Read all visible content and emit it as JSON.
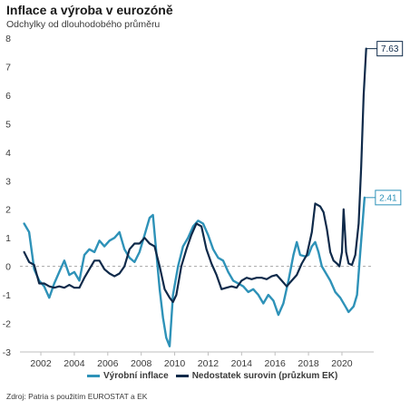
{
  "title": "Inflace a výroba v eurozóně",
  "subtitle": "Odchylky od dlouhodobého průměru",
  "source": "Zdroj: Patria s použitím EUROSTAT a EK",
  "chart_data": {
    "type": "line",
    "title": "Inflace a výroba v eurozóně",
    "subtitle": "Odchylky od dlouhodobého průměru",
    "xlabel": "",
    "ylabel": "",
    "xlim": [
      2000.75,
      2021.9
    ],
    "ylim": [
      -3,
      8
    ],
    "x_ticks": [
      2002,
      2004,
      2006,
      2008,
      2010,
      2012,
      2014,
      2016,
      2018,
      2020
    ],
    "y_ticks": [
      -3,
      -2,
      -1,
      0,
      1,
      2,
      3,
      4,
      5,
      6,
      7,
      8
    ],
    "grid": false,
    "zero_line": "dashed",
    "legend_position": "bottom",
    "series": [
      {
        "name": "Výrobní inflace",
        "color": "#2e92b8",
        "end_label": "2.41",
        "points": [
          [
            2001.0,
            1.5
          ],
          [
            2001.3,
            1.2
          ],
          [
            2001.6,
            -0.1
          ],
          [
            2001.9,
            -0.5
          ],
          [
            2002.2,
            -0.7
          ],
          [
            2002.5,
            -1.1
          ],
          [
            2002.8,
            -0.6
          ],
          [
            2003.1,
            -0.2
          ],
          [
            2003.4,
            0.2
          ],
          [
            2003.7,
            -0.3
          ],
          [
            2004.0,
            -0.2
          ],
          [
            2004.3,
            -0.5
          ],
          [
            2004.6,
            0.4
          ],
          [
            2004.9,
            0.6
          ],
          [
            2005.2,
            0.5
          ],
          [
            2005.5,
            0.9
          ],
          [
            2005.8,
            0.7
          ],
          [
            2006.1,
            0.9
          ],
          [
            2006.4,
            1.0
          ],
          [
            2006.7,
            1.2
          ],
          [
            2007.0,
            0.6
          ],
          [
            2007.3,
            0.3
          ],
          [
            2007.6,
            0.15
          ],
          [
            2007.9,
            0.5
          ],
          [
            2008.2,
            1.1
          ],
          [
            2008.5,
            1.7
          ],
          [
            2008.7,
            1.8
          ],
          [
            2008.9,
            0.5
          ],
          [
            2009.1,
            -0.8
          ],
          [
            2009.3,
            -1.8
          ],
          [
            2009.5,
            -2.5
          ],
          [
            2009.7,
            -2.8
          ],
          [
            2009.9,
            -1.0
          ],
          [
            2010.2,
            0.0
          ],
          [
            2010.5,
            0.7
          ],
          [
            2010.8,
            1.0
          ],
          [
            2011.1,
            1.4
          ],
          [
            2011.4,
            1.6
          ],
          [
            2011.7,
            1.5
          ],
          [
            2012.0,
            1.1
          ],
          [
            2012.3,
            0.6
          ],
          [
            2012.6,
            0.3
          ],
          [
            2012.9,
            0.2
          ],
          [
            2013.2,
            -0.2
          ],
          [
            2013.5,
            -0.5
          ],
          [
            2013.8,
            -0.6
          ],
          [
            2014.1,
            -0.7
          ],
          [
            2014.4,
            -0.9
          ],
          [
            2014.7,
            -0.8
          ],
          [
            2015.0,
            -1.0
          ],
          [
            2015.3,
            -1.3
          ],
          [
            2015.6,
            -1.0
          ],
          [
            2015.9,
            -1.2
          ],
          [
            2016.2,
            -1.7
          ],
          [
            2016.5,
            -1.3
          ],
          [
            2016.8,
            -0.5
          ],
          [
            2017.1,
            0.4
          ],
          [
            2017.3,
            0.85
          ],
          [
            2017.5,
            0.4
          ],
          [
            2017.8,
            0.35
          ],
          [
            2018.0,
            0.4
          ],
          [
            2018.2,
            0.7
          ],
          [
            2018.4,
            0.85
          ],
          [
            2018.6,
            0.5
          ],
          [
            2018.8,
            0.0
          ],
          [
            2019.0,
            -0.2
          ],
          [
            2019.3,
            -0.5
          ],
          [
            2019.6,
            -0.9
          ],
          [
            2019.9,
            -1.1
          ],
          [
            2020.2,
            -1.4
          ],
          [
            2020.4,
            -1.6
          ],
          [
            2020.7,
            -1.4
          ],
          [
            2020.9,
            -1.0
          ],
          [
            2021.1,
            0.5
          ],
          [
            2021.35,
            2.41
          ]
        ]
      },
      {
        "name": "Nedostatek surovin (průzkum EK)",
        "color": "#0f2a4a",
        "end_label": "7.63",
        "points": [
          [
            2001.0,
            0.5
          ],
          [
            2001.3,
            0.15
          ],
          [
            2001.6,
            0.05
          ],
          [
            2001.9,
            -0.6
          ],
          [
            2002.2,
            -0.6
          ],
          [
            2002.5,
            -0.7
          ],
          [
            2002.8,
            -0.75
          ],
          [
            2003.1,
            -0.7
          ],
          [
            2003.4,
            -0.75
          ],
          [
            2003.7,
            -0.65
          ],
          [
            2004.0,
            -0.75
          ],
          [
            2004.3,
            -0.75
          ],
          [
            2004.6,
            -0.4
          ],
          [
            2004.9,
            -0.1
          ],
          [
            2005.2,
            0.2
          ],
          [
            2005.5,
            0.2
          ],
          [
            2005.8,
            -0.1
          ],
          [
            2006.1,
            -0.25
          ],
          [
            2006.4,
            -0.35
          ],
          [
            2006.7,
            -0.25
          ],
          [
            2007.0,
            0.0
          ],
          [
            2007.3,
            0.6
          ],
          [
            2007.6,
            0.8
          ],
          [
            2007.9,
            0.8
          ],
          [
            2008.2,
            1.0
          ],
          [
            2008.5,
            0.8
          ],
          [
            2008.8,
            0.7
          ],
          [
            2009.1,
            0.0
          ],
          [
            2009.4,
            -0.8
          ],
          [
            2009.7,
            -1.1
          ],
          [
            2009.9,
            -1.25
          ],
          [
            2010.1,
            -1.0
          ],
          [
            2010.4,
            0.0
          ],
          [
            2010.7,
            0.6
          ],
          [
            2011.0,
            1.1
          ],
          [
            2011.3,
            1.5
          ],
          [
            2011.6,
            1.4
          ],
          [
            2011.9,
            0.6
          ],
          [
            2012.2,
            0.1
          ],
          [
            2012.5,
            -0.3
          ],
          [
            2012.8,
            -0.8
          ],
          [
            2013.1,
            -0.75
          ],
          [
            2013.4,
            -0.7
          ],
          [
            2013.7,
            -0.75
          ],
          [
            2014.0,
            -0.5
          ],
          [
            2014.3,
            -0.4
          ],
          [
            2014.6,
            -0.45
          ],
          [
            2014.9,
            -0.4
          ],
          [
            2015.2,
            -0.4
          ],
          [
            2015.5,
            -0.45
          ],
          [
            2015.8,
            -0.35
          ],
          [
            2016.1,
            -0.3
          ],
          [
            2016.4,
            -0.5
          ],
          [
            2016.7,
            -0.7
          ],
          [
            2017.0,
            -0.5
          ],
          [
            2017.3,
            -0.3
          ],
          [
            2017.6,
            0.1
          ],
          [
            2017.9,
            0.4
          ],
          [
            2018.2,
            1.2
          ],
          [
            2018.4,
            2.2
          ],
          [
            2018.7,
            2.1
          ],
          [
            2018.9,
            1.9
          ],
          [
            2019.1,
            1.3
          ],
          [
            2019.3,
            0.5
          ],
          [
            2019.5,
            0.2
          ],
          [
            2019.7,
            0.1
          ],
          [
            2019.85,
            0.0
          ],
          [
            2020.0,
            0.5
          ],
          [
            2020.1,
            2.0
          ],
          [
            2020.25,
            0.5
          ],
          [
            2020.4,
            0.1
          ],
          [
            2020.6,
            0.05
          ],
          [
            2020.8,
            0.4
          ],
          [
            2021.0,
            1.5
          ],
          [
            2021.15,
            3.5
          ],
          [
            2021.3,
            6.0
          ],
          [
            2021.45,
            7.63
          ]
        ]
      }
    ]
  }
}
